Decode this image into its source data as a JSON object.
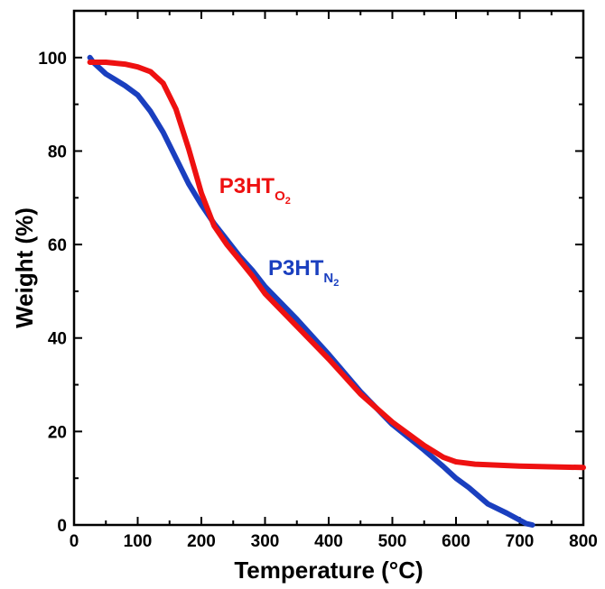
{
  "chart_data": {
    "type": "line",
    "xlabel": "Temperature (°C)",
    "ylabel": "Weight (%)",
    "xlim": [
      0,
      800
    ],
    "ylim": [
      0,
      110
    ],
    "xticks": [
      0,
      100,
      200,
      300,
      400,
      500,
      600,
      700,
      800
    ],
    "yticks": [
      0,
      20,
      40,
      60,
      80,
      100
    ],
    "grid": false,
    "legend": "none",
    "series": [
      {
        "name": "P3HT",
        "subscript": "O",
        "subsubscript": "2",
        "color": "#ee1111",
        "x": [
          25,
          50,
          80,
          100,
          120,
          140,
          160,
          180,
          200,
          220,
          240,
          260,
          280,
          300,
          350,
          400,
          450,
          500,
          550,
          580,
          600,
          630,
          700,
          800
        ],
        "y": [
          99,
          99,
          98.6,
          98,
          97,
          94.5,
          89,
          80.5,
          71,
          64,
          60,
          56.7,
          53.3,
          49.5,
          42.5,
          35.5,
          28,
          22,
          17,
          14.5,
          13.5,
          13,
          12.6,
          12.3
        ]
      },
      {
        "name": "P3HT",
        "subscript": "N",
        "subsubscript": "2",
        "color": "#1a3fbf",
        "x": [
          25,
          30,
          50,
          80,
          100,
          120,
          140,
          160,
          180,
          200,
          220,
          240,
          260,
          280,
          300,
          350,
          400,
          450,
          500,
          550,
          580,
          600,
          620,
          650,
          680,
          710,
          720
        ],
        "y": [
          100,
          99,
          96.5,
          94,
          92,
          88.5,
          84,
          78.5,
          73,
          68.5,
          64.5,
          61,
          57.5,
          54.5,
          51,
          44,
          36.5,
          28.5,
          21.5,
          16,
          12.5,
          10,
          8,
          4.5,
          2.5,
          0.3,
          0
        ]
      }
    ],
    "annotations": [
      {
        "series": 0,
        "x": 228,
        "y": 71
      },
      {
        "series": 1,
        "x": 305,
        "y": 53.5
      }
    ]
  }
}
